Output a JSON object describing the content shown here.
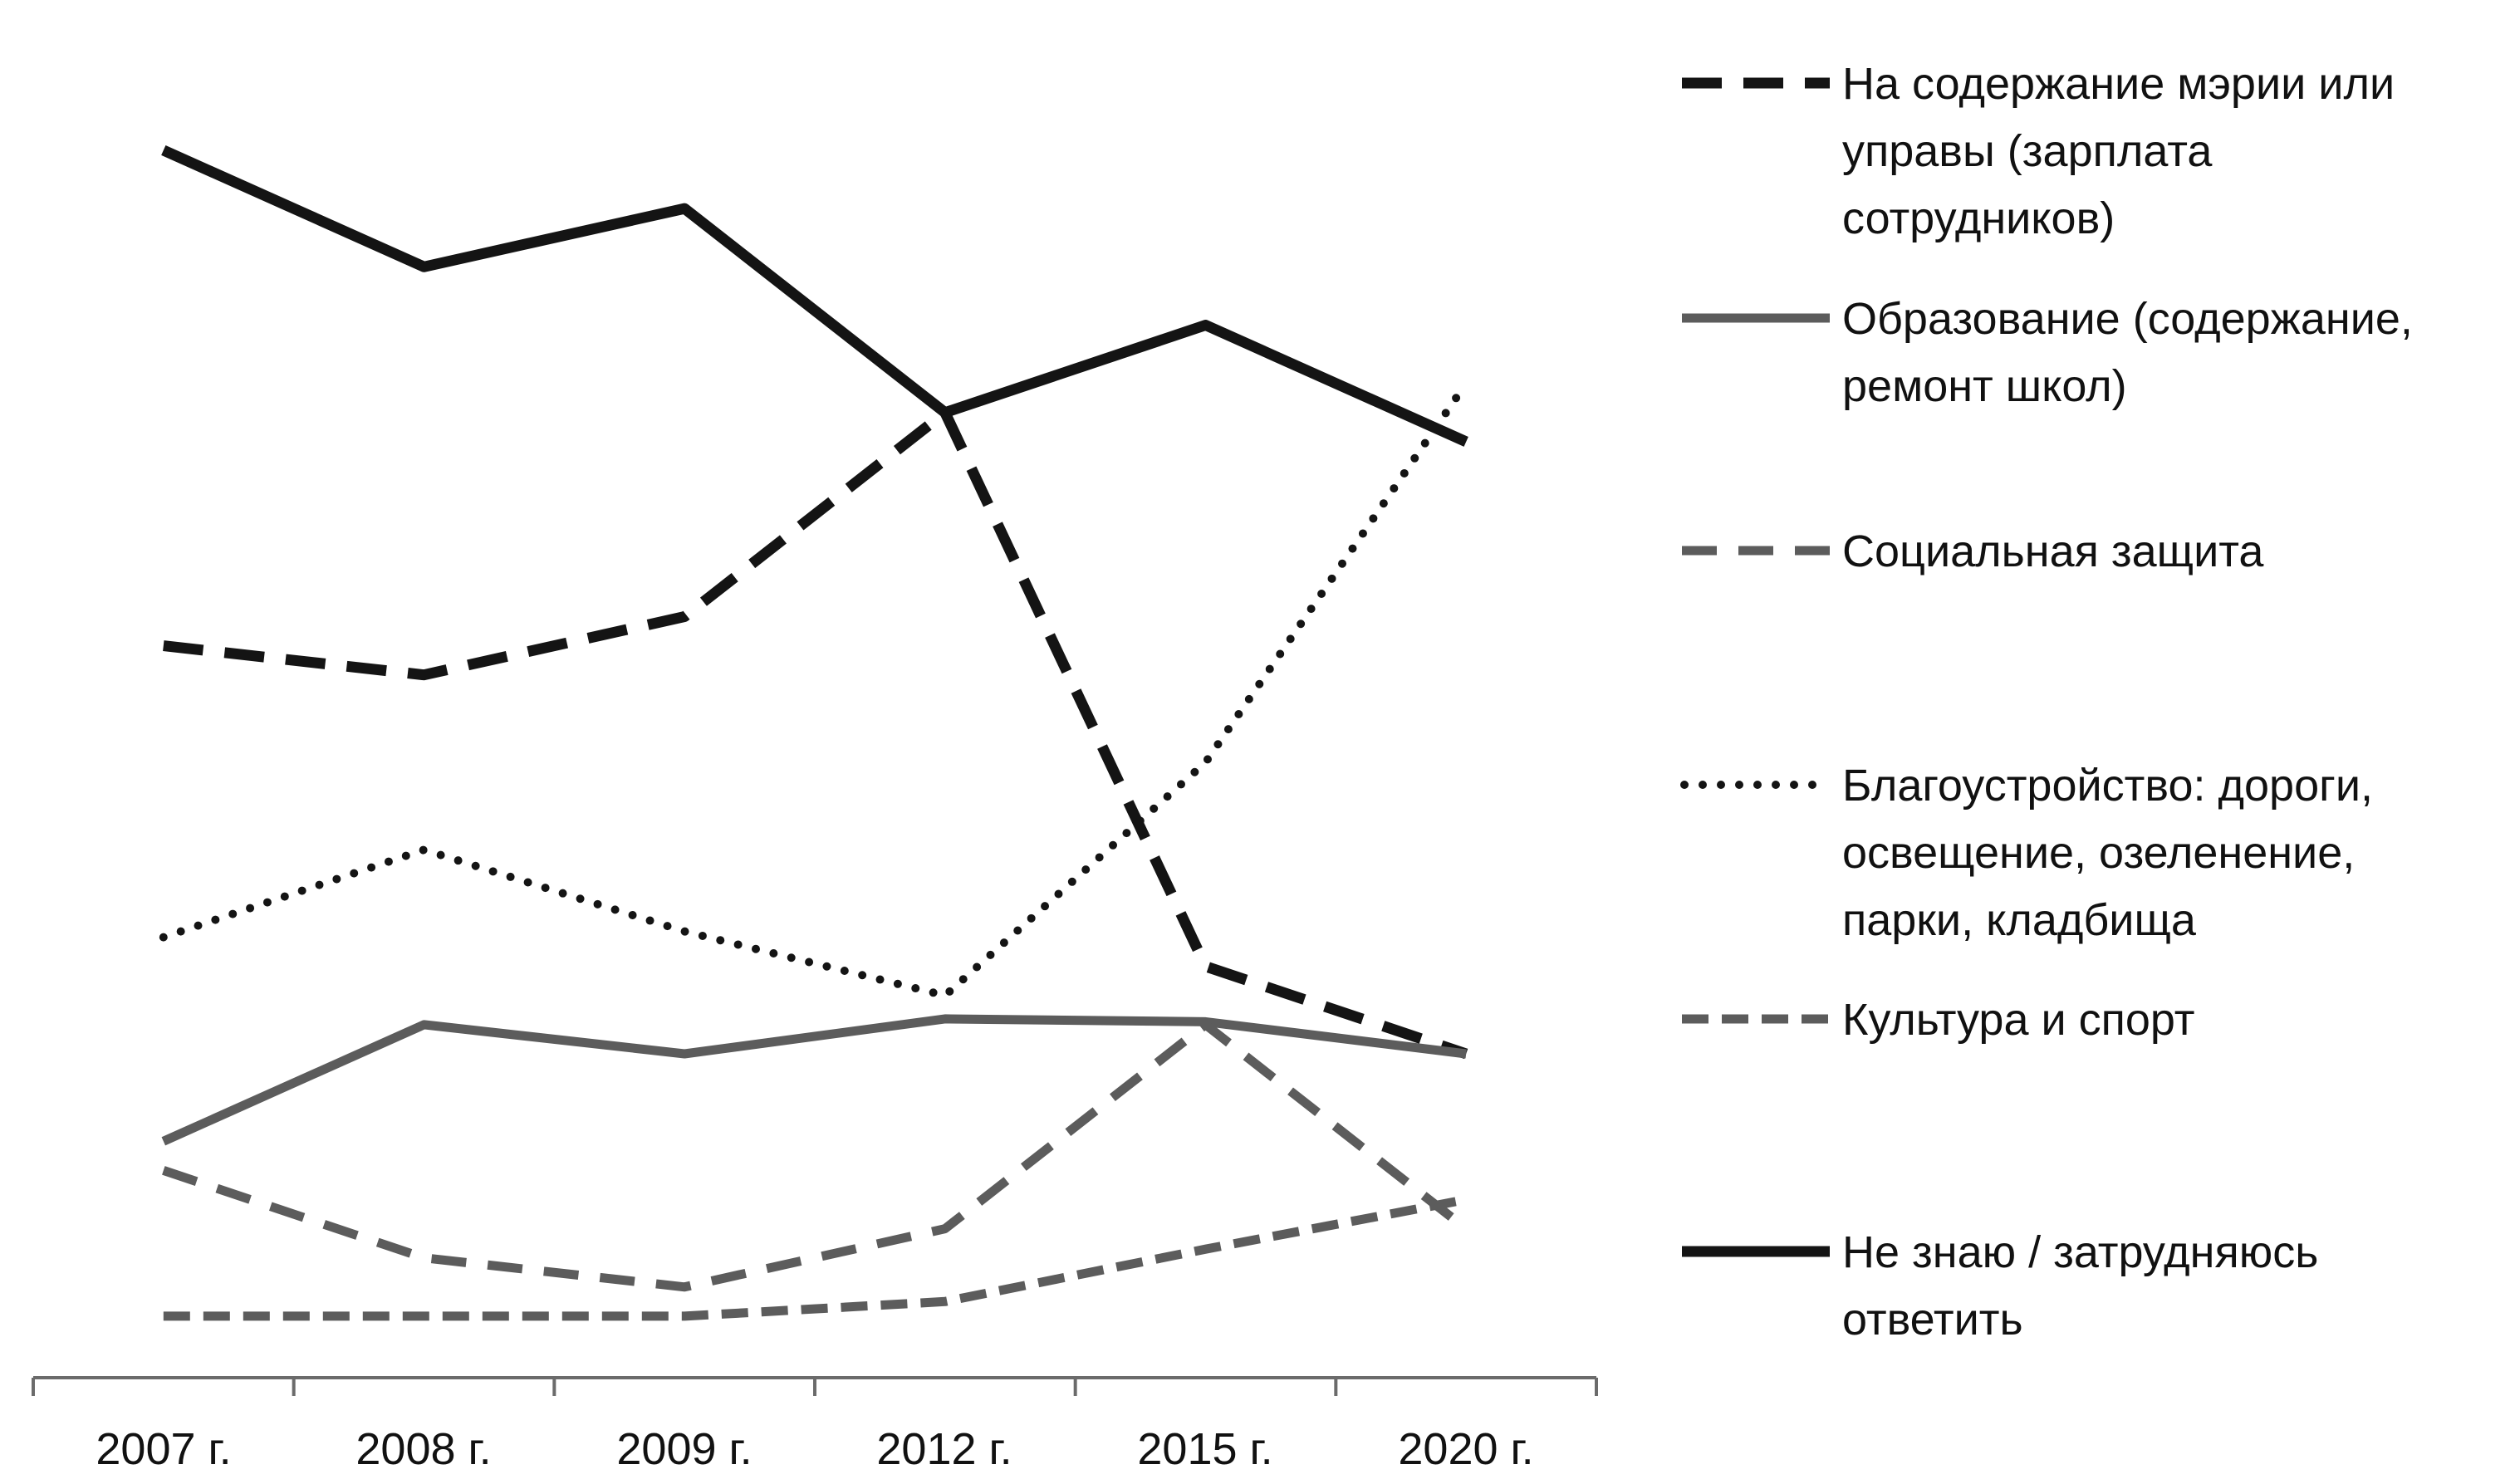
{
  "chart_data": {
    "type": "line",
    "title": "",
    "xlabel": "",
    "ylabel": "",
    "categories": [
      "2007 г.",
      "2008 г.",
      "2009 г.",
      "2012 г.",
      "2015 г.",
      "2020 г."
    ],
    "ylim": [
      0,
      45
    ],
    "grid": false,
    "legend_position": "right",
    "series": [
      {
        "name": "На содержание мэрии или управы (зарплата сотрудников)",
        "legend_lines": [
          "На содержание мэрии или",
          "управы (зарплата",
          "сотрудников)"
        ],
        "values": [
          24,
          23,
          25,
          32,
          13,
          10
        ],
        "color": "#141414",
        "style": "dashed"
      },
      {
        "name": "Образование (содержание, ремонт школ)",
        "legend_lines": [
          "Образование (содержание,",
          "ремонт школ)"
        ],
        "values": [
          7,
          11,
          10,
          11.2,
          11.1,
          10
        ],
        "color": "#5c5c5c",
        "style": "solid"
      },
      {
        "name": "Социальная защита",
        "legend_lines": [
          "Социальная защита"
        ],
        "values": [
          6,
          3,
          2,
          4,
          11,
          4
        ],
        "color": "#5c5c5c",
        "style": "dashed"
      },
      {
        "name": "Благоустройство: дороги, освещение, озеленение, парки, кладбища",
        "legend_lines": [
          "Благоустройство: дороги,",
          "освещение, озеленение,",
          "парки, кладбища"
        ],
        "values": [
          14,
          17,
          14.2,
          12,
          20,
          33
        ],
        "color": "#141414",
        "style": "dotted"
      },
      {
        "name": "Культура и спорт",
        "legend_lines": [
          "Культура и спорт"
        ],
        "values": [
          1,
          1,
          1,
          1.5,
          3.3,
          5
        ],
        "color": "#5c5c5c",
        "style": "dashed"
      },
      {
        "name": "Не знаю / затрудняюсь ответить",
        "legend_lines": [
          "Не знаю / затрудняюсь",
          "ответить"
        ],
        "values": [
          41,
          37,
          39,
          32,
          35,
          31
        ],
        "color": "#141414",
        "style": "solid"
      }
    ]
  }
}
